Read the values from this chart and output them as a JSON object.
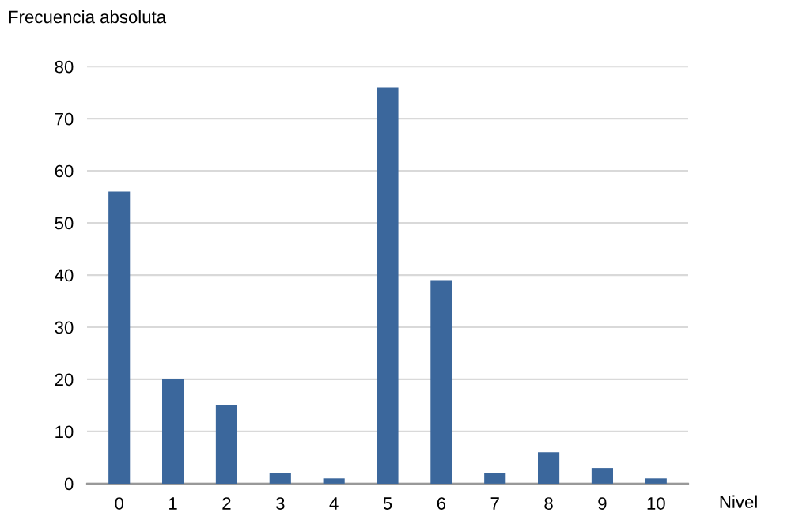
{
  "chart_data": {
    "type": "bar",
    "ylabel": "Frecuencia absoluta",
    "xlabel": "Nivel",
    "categories": [
      "0",
      "1",
      "2",
      "3",
      "4",
      "5",
      "6",
      "7",
      "8",
      "9",
      "10"
    ],
    "values": [
      56,
      20,
      15,
      2,
      1,
      76,
      39,
      2,
      6,
      3,
      1
    ],
    "color": "#3b679c",
    "ylim": [
      0,
      80
    ],
    "yticks": [
      0,
      10,
      20,
      30,
      40,
      50,
      60,
      70,
      80
    ],
    "grid": "y",
    "legend": false
  }
}
